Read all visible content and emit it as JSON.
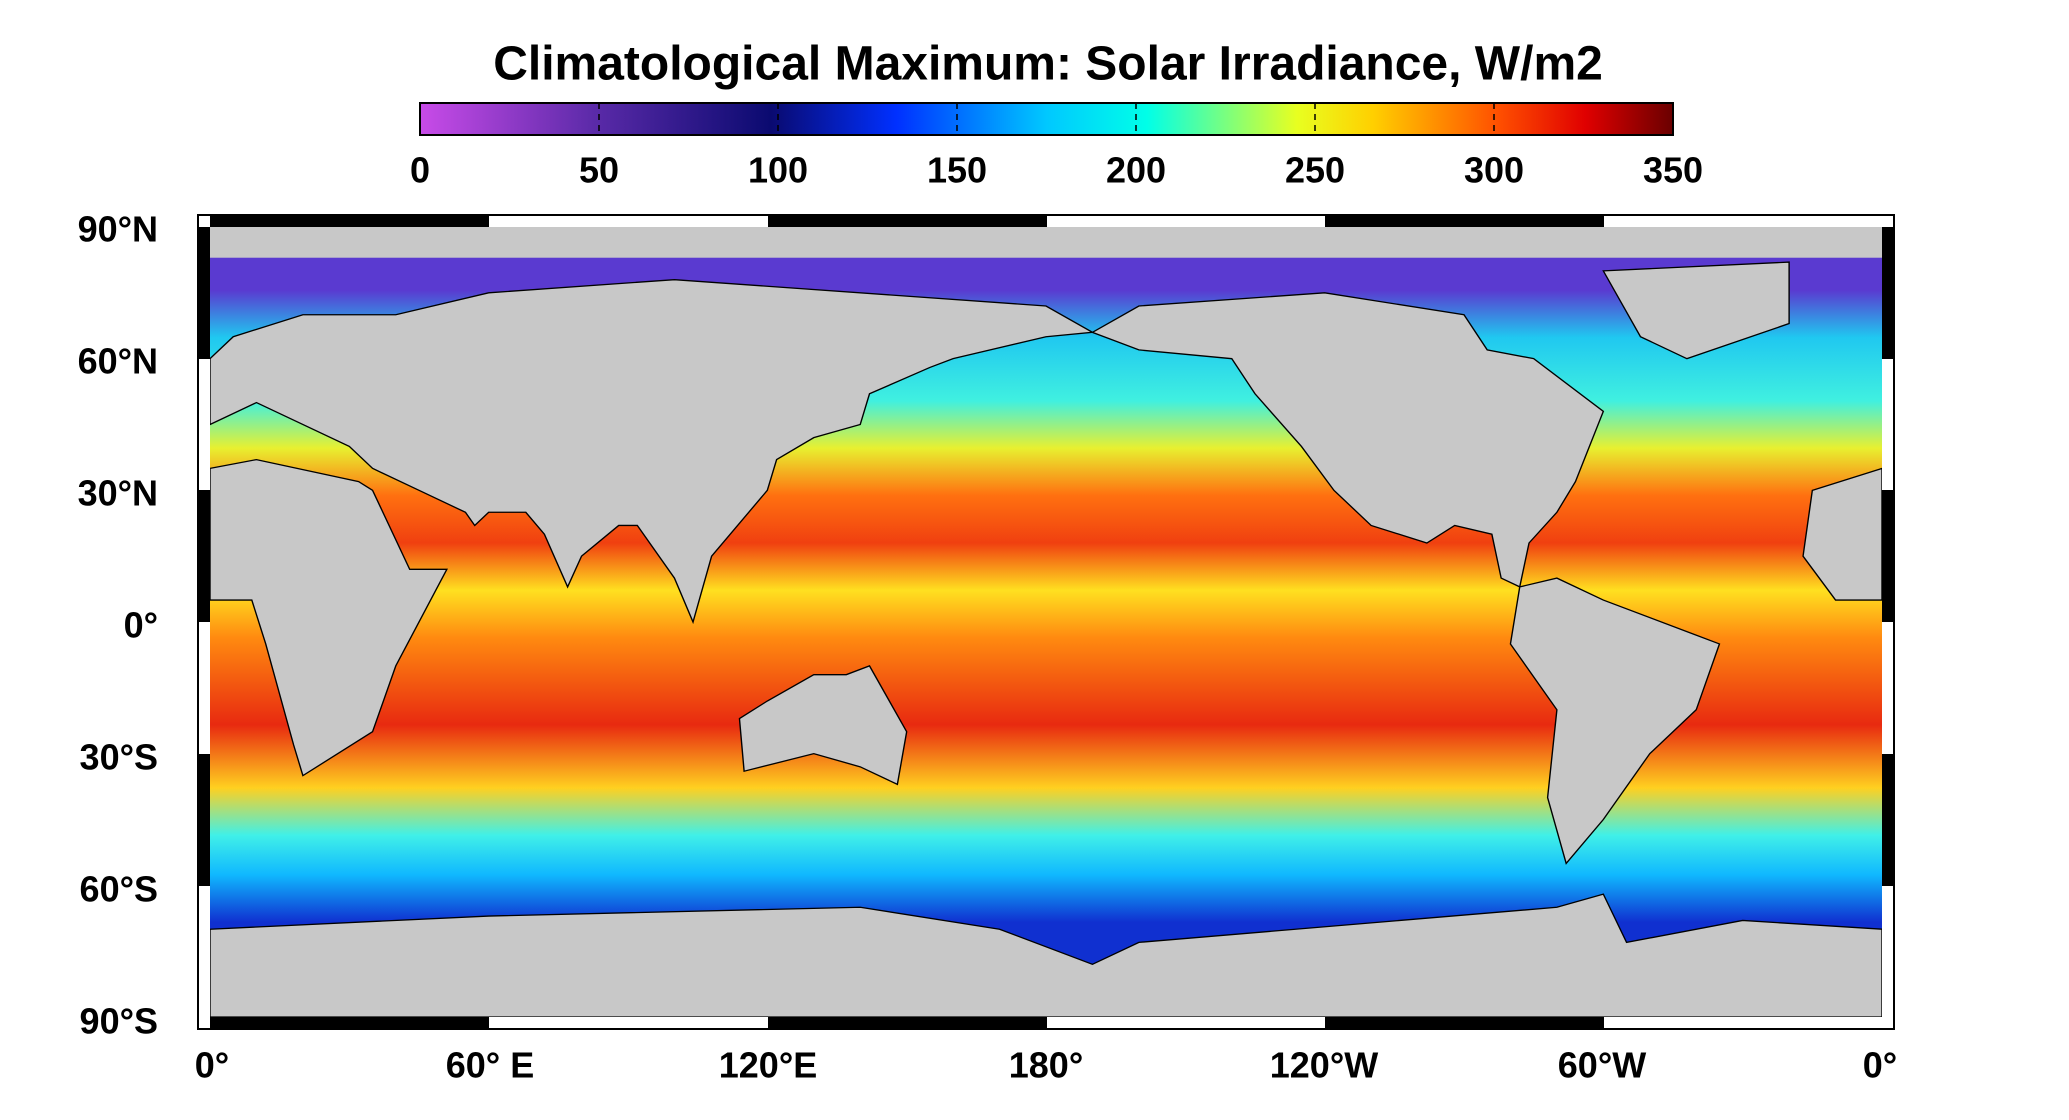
{
  "title": "Climatological Maximum: Solar Irradiance, W/m2",
  "colorbar": {
    "lim": [
      0,
      350
    ],
    "ticks": [
      0,
      50,
      100,
      150,
      200,
      250,
      300,
      350
    ]
  },
  "lat_labels": [
    "90°N",
    "60°N",
    "30°N",
    "0°",
    "30°S",
    "60°S",
    "90°S"
  ],
  "lon_labels": [
    "0°",
    "60° E",
    "120°E",
    "180°",
    "120°W",
    "60°W",
    "0°"
  ]
}
